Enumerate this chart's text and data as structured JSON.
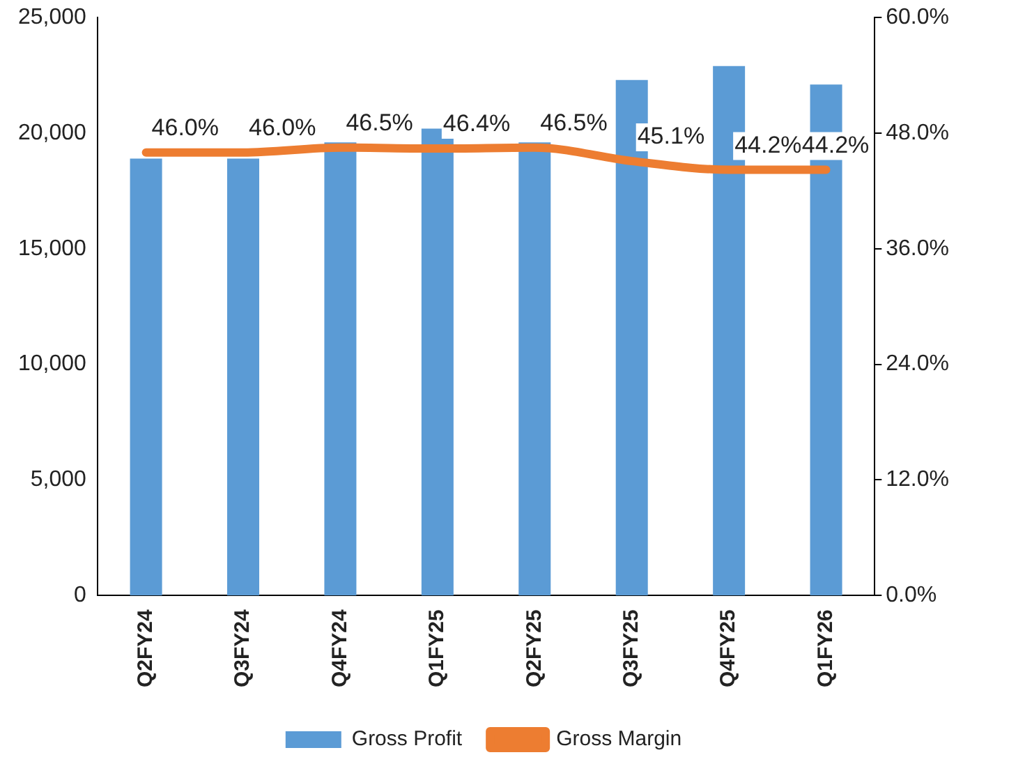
{
  "chart_data": {
    "type": "bar",
    "categories": [
      "Q2FY24",
      "Q3FY24",
      "Q4FY24",
      "Q1FY25",
      "Q2FY25",
      "Q3FY25",
      "Q4FY25",
      "Q1FY26"
    ],
    "series": [
      {
        "name": "Gross Profit",
        "color": "#5b9bd5",
        "values": [
          18900,
          18900,
          19600,
          20200,
          19600,
          22300,
          22900,
          22100
        ]
      },
      {
        "name": "Gross Margin",
        "type": "line",
        "axis": "y2",
        "color": "#ed7d31",
        "values": [
          46.0,
          46.0,
          46.5,
          46.4,
          46.5,
          45.1,
          44.2,
          44.2
        ],
        "value_labels": [
          "46.0%",
          "46.0%",
          "46.5%",
          "46.4%",
          "46.5%",
          "45.1%",
          "44.2%",
          "44.2%"
        ]
      }
    ],
    "ylim": [
      0,
      25000
    ],
    "yticks": [
      {
        "value": 0,
        "label": "0"
      },
      {
        "value": 5000,
        "label": "5,000"
      },
      {
        "value": 10000,
        "label": "10,000"
      },
      {
        "value": 15000,
        "label": "15,000"
      },
      {
        "value": 20000,
        "label": "20,000"
      },
      {
        "value": 25000,
        "label": "25,000"
      }
    ],
    "y2lim": [
      0,
      60
    ],
    "y2ticks": [
      {
        "value": 0,
        "label": "0.0%"
      },
      {
        "value": 12,
        "label": "12.0%"
      },
      {
        "value": 24,
        "label": "24.0%"
      },
      {
        "value": 36,
        "label": "36.0%"
      },
      {
        "value": 48,
        "label": "48.0%"
      },
      {
        "value": 60,
        "label": "60.0%"
      }
    ],
    "grid": false,
    "legend": "bottom",
    "marker": "none"
  }
}
